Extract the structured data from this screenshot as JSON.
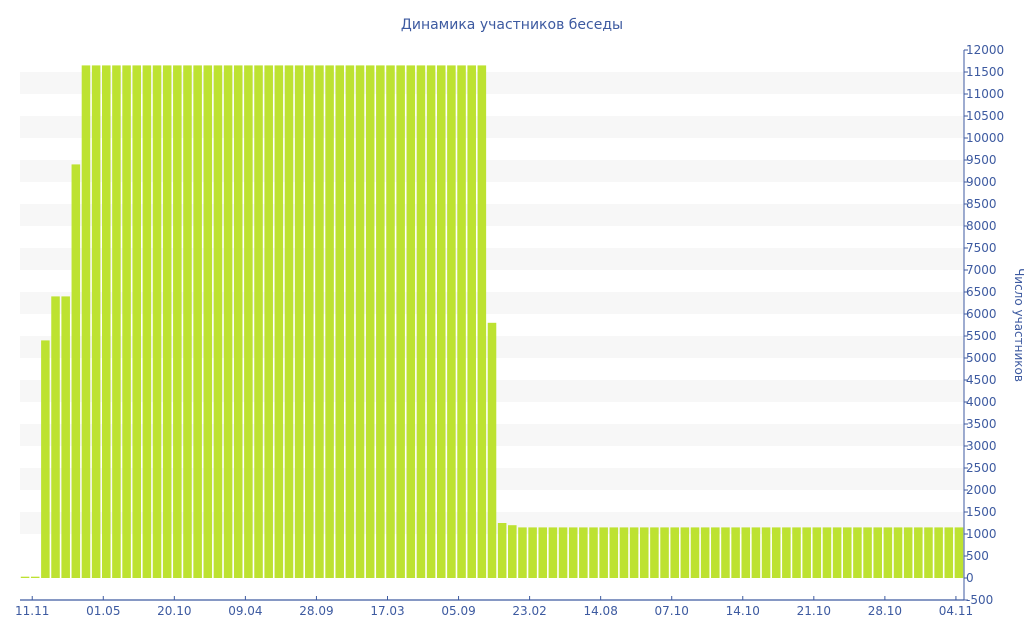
{
  "chart_data": {
    "type": "bar",
    "title": "Динамика участников беседы",
    "xlabel": "",
    "ylabel": "Число участников",
    "ylim": [
      -500,
      12000
    ],
    "ytick_step": 500,
    "y_axis_side": "right",
    "grid": "alternating horizontal bands",
    "legend": "none",
    "x_tick_labels": [
      "11.11",
      "01.05",
      "20.10",
      "09.04",
      "28.09",
      "17.03",
      "05.09",
      "23.02",
      "14.08",
      "07.10",
      "14.10",
      "21.10",
      "28.10",
      "04.11"
    ],
    "x_tick_every": 7,
    "x_tick_first_bar": 1,
    "values": [
      30,
      30,
      5400,
      6400,
      6400,
      9400,
      11650,
      11650,
      11650,
      11650,
      11650,
      11650,
      11650,
      11650,
      11650,
      11650,
      11650,
      11650,
      11650,
      11650,
      11650,
      11650,
      11650,
      11650,
      11650,
      11650,
      11650,
      11650,
      11650,
      11650,
      11650,
      11650,
      11650,
      11650,
      11650,
      11650,
      11650,
      11650,
      11650,
      11650,
      11650,
      11650,
      11650,
      11650,
      11650,
      11650,
      5800,
      1250,
      1200,
      1150,
      1150,
      1150,
      1150,
      1150,
      1150,
      1150,
      1150,
      1150,
      1150,
      1150,
      1150,
      1150,
      1150,
      1150,
      1150,
      1150,
      1150,
      1150,
      1150,
      1150,
      1150,
      1150,
      1150,
      1150,
      1150,
      1150,
      1150,
      1150,
      1150,
      1150,
      1150,
      1150,
      1150,
      1150,
      1150,
      1150,
      1150,
      1150,
      1150,
      1150,
      1150,
      1150,
      1150
    ]
  },
  "colors": {
    "bar": "#bde231",
    "axis": "#3d5aa0",
    "band": "#f7f7f7"
  }
}
